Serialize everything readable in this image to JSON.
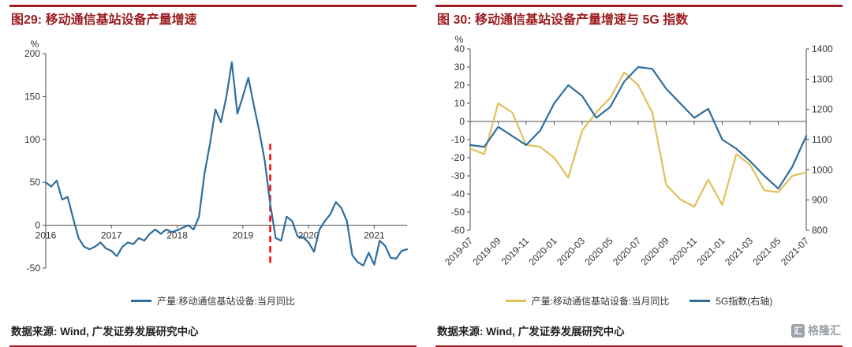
{
  "colors": {
    "accent_dark_red": "#9B1C1F",
    "blue_line": "#2E6E9E",
    "yellow_line": "#E0C05A",
    "red_dashed_line": "#FF0000",
    "axis": "#4D4D4D",
    "logo_gray": "#9AA1A9"
  },
  "panels": {
    "left": {
      "title": "图29: 移动通信基站设备产量增速",
      "source": "数据来源: Wind, 广发证券发展研究中心"
    },
    "right": {
      "title": "图 30: 移动通信基站设备产量增速与 5G 指数",
      "source": "数据来源: Wind, 广发证券发展研究中心"
    }
  },
  "logo": {
    "text": "格隆汇",
    "icon_glyph": "汇"
  },
  "chart_data": [
    {
      "type": "line",
      "title": "图29: 移动通信基站设备产量增速",
      "ylabel": "%",
      "ylim": [
        -50,
        200
      ],
      "yticks": [
        -50,
        0,
        50,
        100,
        150,
        200
      ],
      "x_months_start": "2016-01",
      "x_months_end": "2021-07",
      "xtick_labels": [
        "2016",
        "2017",
        "2018",
        "2019",
        "2020",
        "2021"
      ],
      "xtick_month_indices": [
        0,
        12,
        24,
        36,
        48,
        60
      ],
      "grid": false,
      "legend_position": "bottom",
      "series": [
        {
          "name": "产量:移动通信基站设备:当月同比",
          "color": "#2E6E9E",
          "values": [
            50,
            45,
            52,
            30,
            33,
            8,
            -15,
            -25,
            -28,
            -25,
            -20,
            -27,
            -30,
            -36,
            -25,
            -20,
            -22,
            -15,
            -18,
            -10,
            -5,
            -10,
            -5,
            -8,
            -6,
            -3,
            0,
            -5,
            10,
            60,
            95,
            135,
            120,
            150,
            190,
            130,
            150,
            172,
            140,
            110,
            75,
            25,
            -15,
            -18,
            10,
            5,
            -13,
            -14,
            -20,
            -31,
            -5,
            5,
            13,
            27,
            20,
            5,
            -35,
            -43,
            -47,
            -32,
            -46,
            -18,
            -24,
            -38,
            -39,
            -30,
            -28
          ]
        }
      ],
      "annotations": [
        {
          "type": "vline-dashed",
          "month": "2019-06",
          "month_index": 41,
          "color": "#FF0000",
          "value_from": 95,
          "value_to": -48
        }
      ]
    },
    {
      "type": "line",
      "title": "图 30: 移动通信基站设备产量增速与 5G 指数",
      "ylabel_left": "%",
      "ylim_left": [
        -60,
        40
      ],
      "yticks_left": [
        -60,
        -50,
        -40,
        -30,
        -20,
        -10,
        0,
        10,
        20,
        30,
        40
      ],
      "ylim_right": [
        800,
        1400
      ],
      "yticks_right": [
        800,
        900,
        1000,
        1100,
        1200,
        1300,
        1400
      ],
      "x_months_start": "2019-07",
      "x_months_end": "2021-07",
      "xtick_labels": [
        "2019-07",
        "2019-09",
        "2019-11",
        "2020-01",
        "2020-03",
        "2020-05",
        "2020-07",
        "2020-09",
        "2020-11",
        "2021-01",
        "2021-03",
        "2021-05",
        "2021-07"
      ],
      "xtick_month_indices": [
        0,
        2,
        4,
        6,
        8,
        10,
        12,
        14,
        16,
        18,
        20,
        22,
        24
      ],
      "grid": false,
      "legend_position": "bottom",
      "series": [
        {
          "name": "产量:移动通信基站设备:当月同比",
          "axis": "left",
          "color": "#E0C05A",
          "values": [
            -15,
            -18,
            10,
            5,
            -13,
            -14,
            -20,
            -31,
            -5,
            5,
            13,
            27,
            20,
            5,
            -35,
            -43,
            -47,
            -32,
            -46,
            -18,
            -24,
            -38,
            -39,
            -30,
            -28
          ]
        },
        {
          "name": "5G指数(右轴)",
          "axis": "right",
          "color": "#2E6E9E",
          "values": [
            1082,
            1076,
            1142,
            1112,
            1082,
            1130,
            1220,
            1280,
            1244,
            1172,
            1208,
            1292,
            1340,
            1334,
            1268,
            1220,
            1172,
            1202,
            1100,
            1070,
            1028,
            980,
            938,
            1010,
            1112
          ]
        }
      ]
    }
  ]
}
